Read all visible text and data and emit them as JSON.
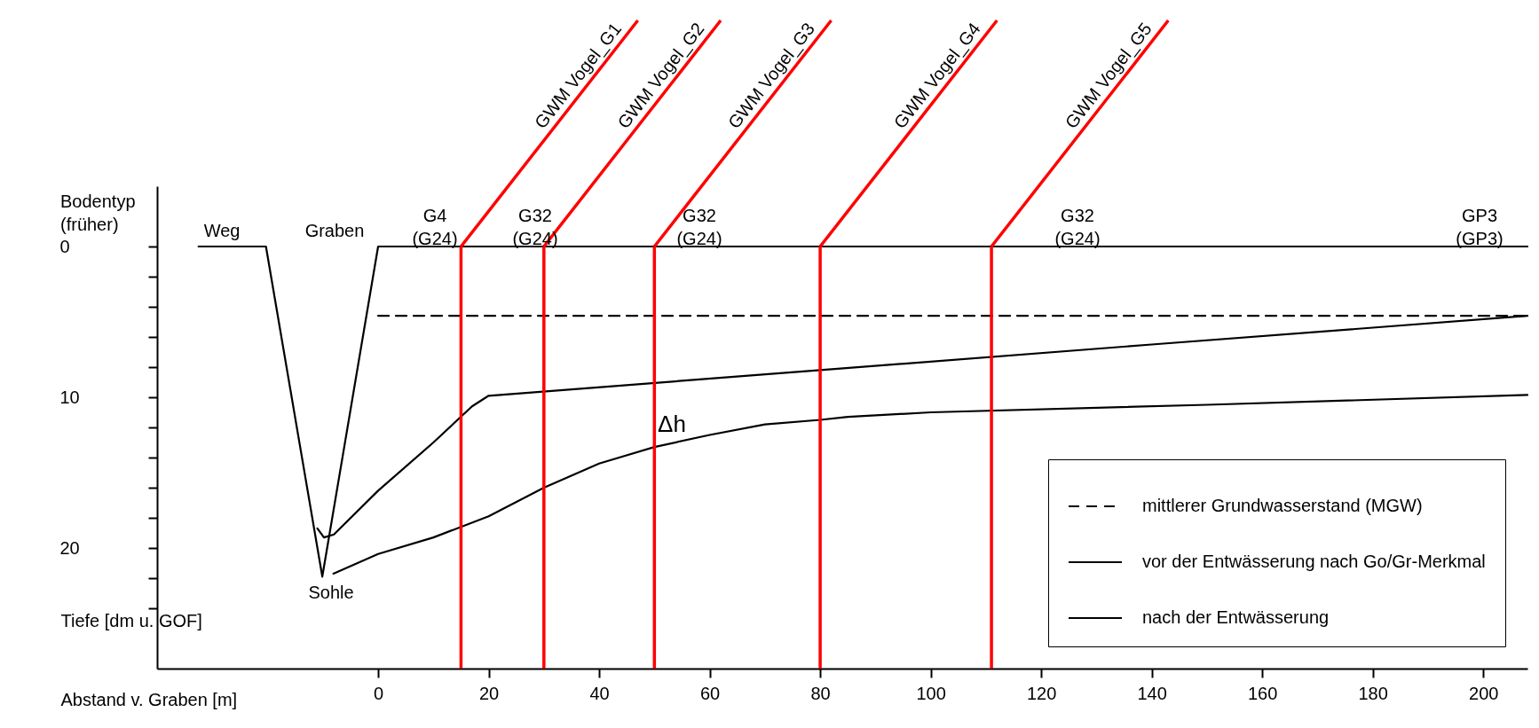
{
  "chart_data": {
    "type": "line",
    "xlabel": "Abstand v. Graben [m]",
    "ylabel": "Tiefe [dm u. GOF]",
    "xlim": [
      -40,
      208
    ],
    "ylim": [
      28,
      -4
    ],
    "xticks": [
      0,
      20,
      40,
      60,
      80,
      100,
      120,
      140,
      160,
      180,
      200
    ],
    "yticks": [
      0,
      {
        "value": 2,
        "label": null
      },
      {
        "value": 4,
        "label": null
      },
      {
        "value": 6,
        "label": null
      },
      {
        "value": 8,
        "label": null
      },
      10,
      {
        "value": 12,
        "label": null
      },
      {
        "value": 14,
        "label": null
      },
      {
        "value": 16,
        "label": null
      },
      {
        "value": 18,
        "label": null
      },
      20,
      {
        "value": 22,
        "label": null
      },
      {
        "value": 24,
        "label": null
      }
    ],
    "legend": "bottom right",
    "series": [
      {
        "color": "#000000",
        "line_style": "solid",
        "x": [
          -32.5,
          -20.3,
          -10.1,
          0,
          208
        ],
        "values": [
          0,
          0,
          21.9,
          0,
          0
        ]
      },
      {
        "name": "mittlerer Grundwasserstand (MGW)",
        "color": "#000000",
        "line_style": "dashed",
        "x": [
          0,
          208
        ],
        "values": [
          4.6,
          4.6
        ]
      },
      {
        "name": "vor der Entwässerung nach Go/Gr-Merkmal",
        "color": "#000000",
        "line_style": "solid",
        "x": [
          -11,
          -9.8,
          -8,
          0,
          10,
          17,
          20,
          80,
          140,
          208
        ],
        "values": [
          18.7,
          19.3,
          19.1,
          16.2,
          13.0,
          10.6,
          9.9,
          8.2,
          6.5,
          4.6
        ]
      },
      {
        "name": "nach der Entwässerung",
        "color": "#000000",
        "line_style": "solid",
        "x": [
          -8.1,
          0,
          10,
          20,
          30,
          40,
          50,
          60,
          70,
          80,
          85,
          100,
          150,
          208
        ],
        "values": [
          21.7,
          20.4,
          19.3,
          17.9,
          16.0,
          14.4,
          13.3,
          12.5,
          11.8,
          11.5,
          11.3,
          11.0,
          10.5,
          9.85
        ]
      }
    ],
    "ref_lines": [
      {
        "axis": "x",
        "value": 15,
        "label": "GWM Vogel_G1",
        "color": "#ff0000"
      },
      {
        "axis": "x",
        "value": 30,
        "label": "GWM Vogel_G2",
        "color": "#ff0000"
      },
      {
        "axis": "x",
        "value": 50,
        "label": "GWM Vogel_G3",
        "color": "#ff0000"
      },
      {
        "axis": "x",
        "value": 80,
        "label": "GWM Vogel_G4",
        "color": "#ff0000"
      },
      {
        "axis": "x",
        "value": 111,
        "label": "GWM Vogel_G5",
        "color": "#ff0000"
      }
    ],
    "annotations": [
      "Bodentyp\n(früher)",
      "Weg",
      "Graben",
      "Sohle",
      "G4\n(G24)",
      "G32\n(G24)",
      "G32\n(G24)",
      "G32\n(G24)",
      "GP3\n(GP3)",
      "Δh"
    ]
  }
}
